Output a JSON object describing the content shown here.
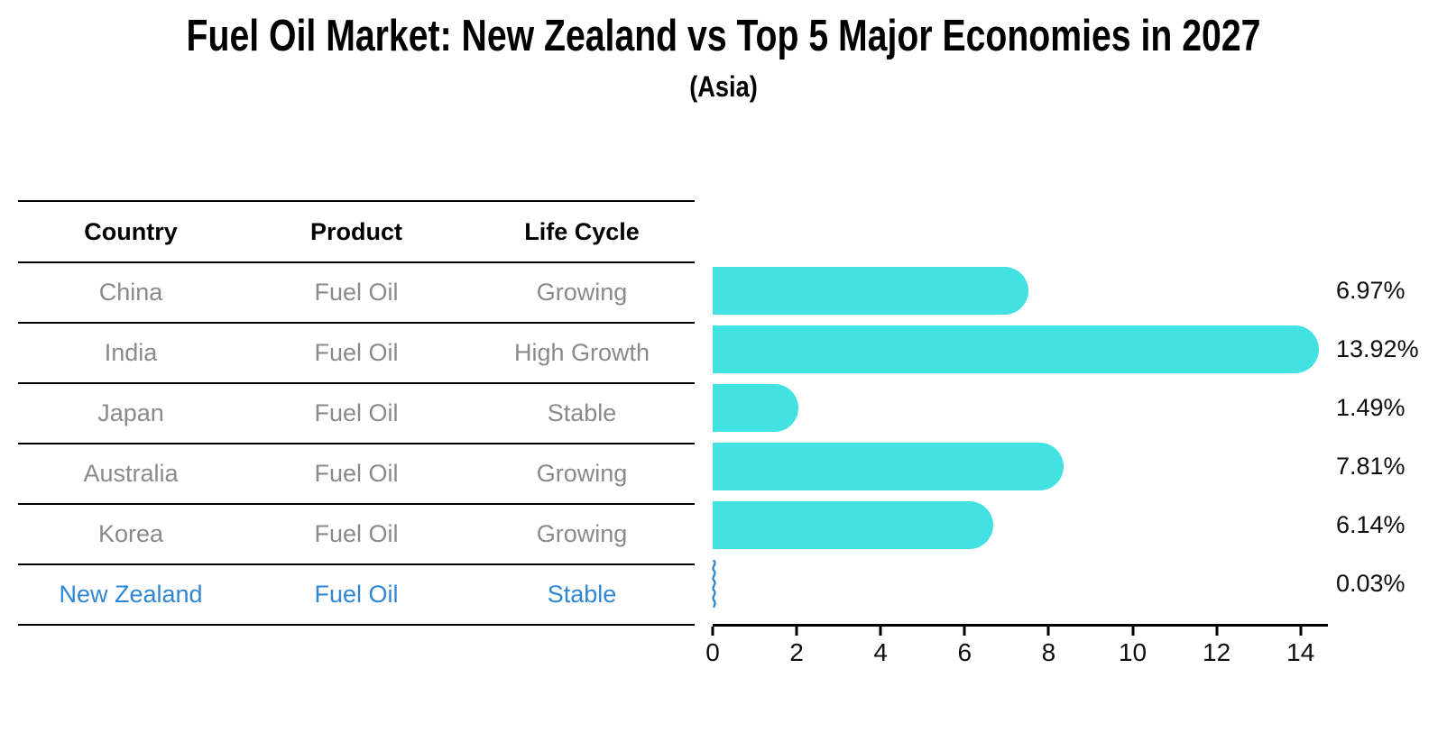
{
  "title": "Fuel Oil Market: New Zealand vs Top 5 Major Economies in 2027",
  "subtitle": "(Asia)",
  "table": {
    "headers": [
      "Country",
      "Product",
      "Life Cycle"
    ],
    "rows": [
      {
        "country": "China",
        "product": "Fuel Oil",
        "life_cycle": "Growing",
        "highlight": false
      },
      {
        "country": "India",
        "product": "Fuel Oil",
        "life_cycle": "High Growth",
        "highlight": false
      },
      {
        "country": "Japan",
        "product": "Fuel Oil",
        "life_cycle": "Stable",
        "highlight": false
      },
      {
        "country": "Australia",
        "product": "Fuel Oil",
        "life_cycle": "Growing",
        "highlight": false
      },
      {
        "country": "Korea",
        "product": "Fuel Oil",
        "life_cycle": "Growing",
        "highlight": false
      },
      {
        "country": "New Zealand",
        "product": "Fuel Oil",
        "life_cycle": "Stable",
        "highlight": true
      }
    ]
  },
  "chart_data": {
    "type": "bar",
    "orientation": "horizontal",
    "title": "Fuel Oil Market: New Zealand vs Top 5 Major Economies in 2027 (Asia)",
    "categories": [
      "China",
      "India",
      "Japan",
      "Australia",
      "Korea",
      "New Zealand"
    ],
    "values": [
      6.97,
      13.92,
      1.49,
      7.81,
      6.14,
      0.03
    ],
    "value_labels": [
      "6.97%",
      "13.92%",
      "1.49%",
      "7.81%",
      "6.14%",
      "0.03%"
    ],
    "xlabel": "",
    "ylabel": "",
    "xlim": [
      0,
      14.65
    ],
    "xticks": [
      0,
      2,
      4,
      6,
      8,
      10,
      12,
      14
    ],
    "grid": false,
    "legend": "none"
  },
  "colors": {
    "bar": "#42E2E2",
    "highlight_text": "#2E86D5",
    "nz_marker": "#2E86D5",
    "row_text": "#8A8A8A",
    "header_text": "#000000",
    "axis": "#000000",
    "background": "#FFFFFF"
  }
}
